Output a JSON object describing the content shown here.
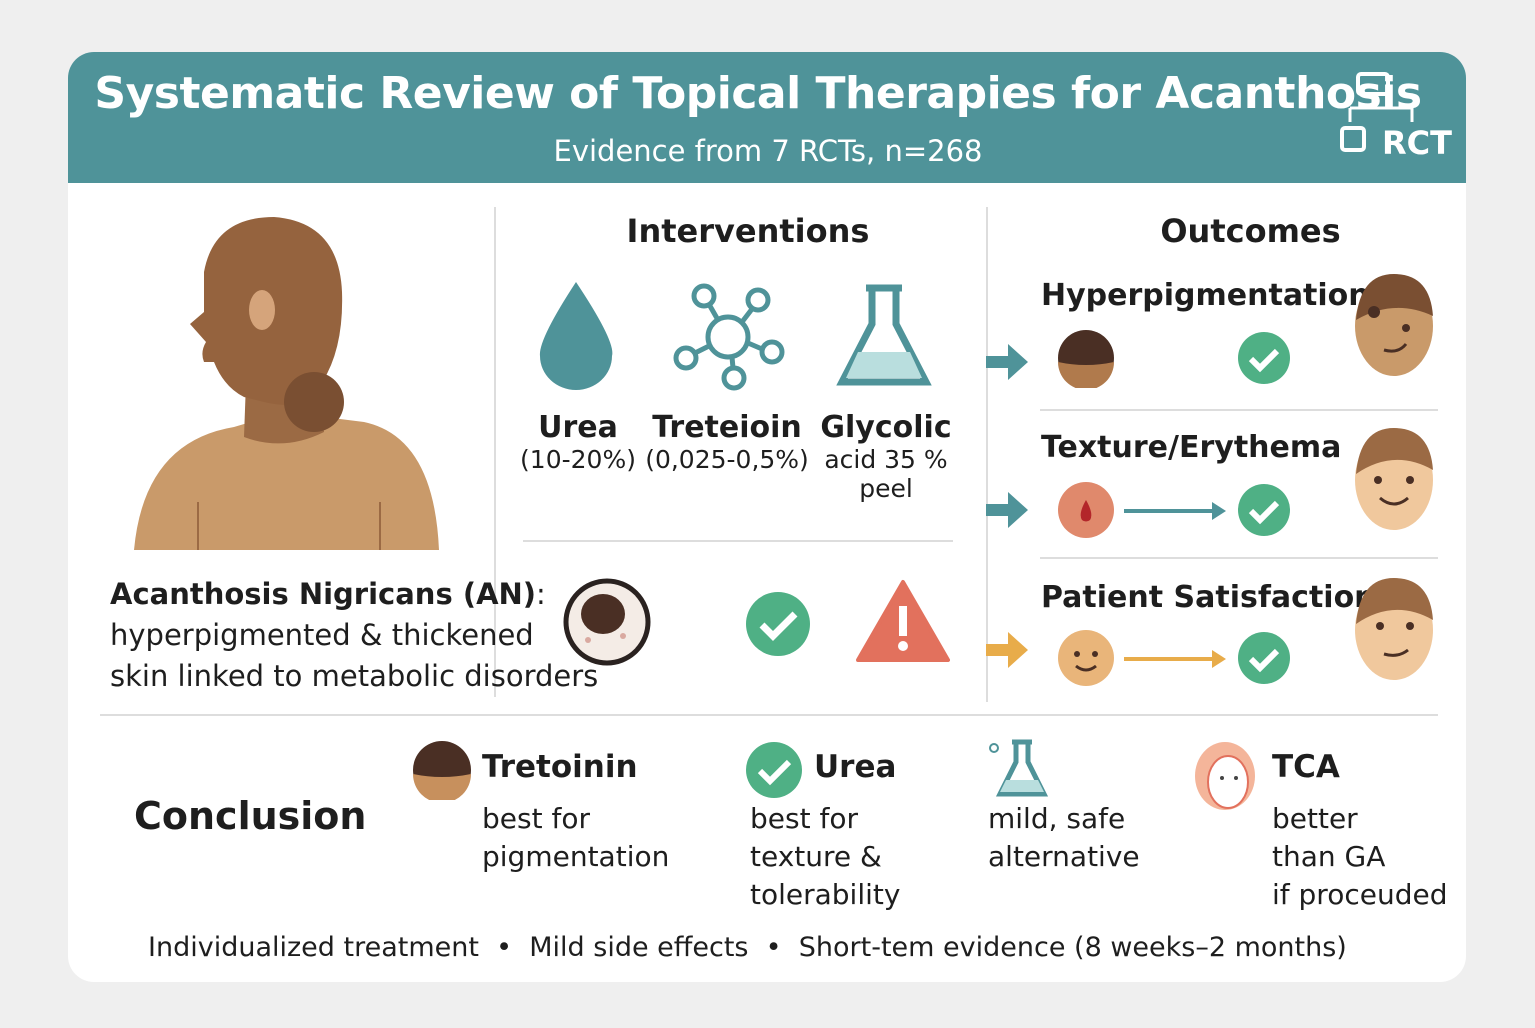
{
  "header": {
    "title": "Systematic Review of Topical Therapies for Acanthosis",
    "subtitle": "Evidence from 7 RCTs, n=268",
    "rct_label": "RCT"
  },
  "condition": {
    "name": "Acanthosis Nigricans (AN)",
    "colon": ":",
    "description_1": "hyperpigmented & thickened",
    "description_2": "skin linked to metabolic disorders"
  },
  "interventions": {
    "heading": "Interventions",
    "items": [
      {
        "name": "Urea",
        "detail": "(10-20%)",
        "icon": "drop-icon"
      },
      {
        "name": "Treteioin",
        "detail": "(0,025-0,5%)",
        "icon": "molecule-icon"
      },
      {
        "name": "Glycolic",
        "detail": "acid 35 %",
        "detail2": "peel",
        "icon": "flask-icon"
      }
    ]
  },
  "outcomes": {
    "heading": "Outcomes",
    "items": [
      {
        "label": "Hyperpigmentation"
      },
      {
        "label": "Texture/Erythema"
      },
      {
        "label": "Patient Satisfaction"
      }
    ]
  },
  "conclusion": {
    "heading": "Conclusion",
    "items": [
      {
        "title": "Tretoinin",
        "lines": [
          "best for",
          "pigmentation"
        ]
      },
      {
        "title": "Urea",
        "lines": [
          "best for",
          "texture &",
          "tolerability"
        ]
      },
      {
        "title": "",
        "lines": [
          "mild, safe",
          "alternative"
        ]
      },
      {
        "title": "TCA",
        "lines": [
          "better",
          "than GA",
          "if proceuded"
        ]
      }
    ]
  },
  "footer": {
    "text1": "Individualized treatment",
    "text2": "Mild side effects",
    "text3": "Short-tem evidence  (8 weeks–2 months)",
    "bullet": "•"
  },
  "colors": {
    "teal": "#4f9399",
    "green": "#4fb085",
    "warning": "#e2715d",
    "orange": "#e8ac4a",
    "skin": "#c99a6a",
    "dark_skin": "#7a4f32"
  }
}
